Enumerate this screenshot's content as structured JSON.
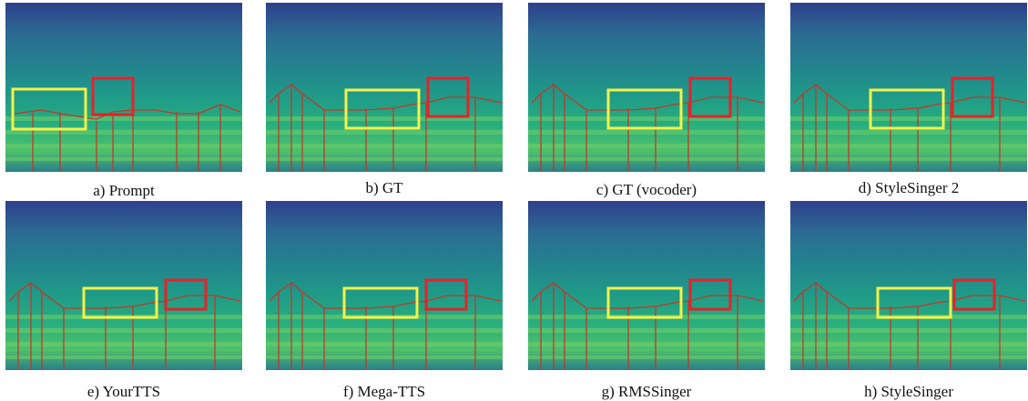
{
  "colors": {
    "highlight_yellow": "#f4f14a",
    "highlight_red": "#e5222a",
    "pitch_contour": "#c0392b",
    "spectrogram_low": "#2f3f8c",
    "spectrogram_high": "#4fc06a"
  },
  "panels": [
    {
      "caption": "a) Prompt"
    },
    {
      "caption": "b) GT"
    },
    {
      "caption": "c) GT (vocoder)"
    },
    {
      "caption": "d) StyleSinger 2"
    },
    {
      "caption": "e) YourTTS"
    },
    {
      "caption": "f) Mega-TTS"
    },
    {
      "caption": "g) RMSSinger"
    },
    {
      "caption": "h) StyleSinger"
    }
  ]
}
